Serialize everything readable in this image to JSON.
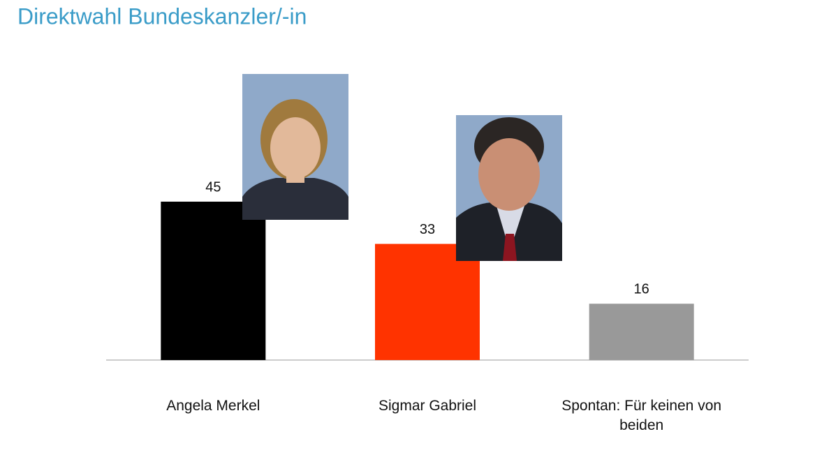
{
  "chart_data": {
    "type": "bar",
    "title": "Direktwahl Bundeskanzler/-in",
    "categories": [
      "Angela Merkel",
      "Sigmar Gabriel",
      "Spontan: Für keinen von beiden"
    ],
    "values": [
      45,
      33,
      16
    ],
    "colors": [
      "#000000",
      "#ff3300",
      "#999999"
    ]
  }
}
